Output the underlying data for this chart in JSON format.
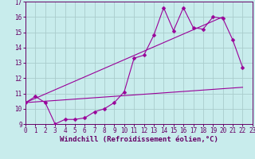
{
  "xlabel": "Windchill (Refroidissement éolien,°C)",
  "xlim": [
    0,
    23
  ],
  "ylim": [
    9,
    17
  ],
  "xticks": [
    0,
    1,
    2,
    3,
    4,
    5,
    6,
    7,
    8,
    9,
    10,
    11,
    12,
    13,
    14,
    15,
    16,
    17,
    18,
    19,
    20,
    21,
    22,
    23
  ],
  "yticks": [
    9,
    10,
    11,
    12,
    13,
    14,
    15,
    16,
    17
  ],
  "background_color": "#c8ecec",
  "line_color": "#990099",
  "grid_color": "#b8dede",
  "series_x": [
    0,
    1,
    2,
    3,
    4,
    5,
    6,
    7,
    8,
    9,
    10,
    11,
    12,
    13,
    14,
    15,
    16,
    17,
    18,
    19,
    20,
    21,
    22
  ],
  "series_y": [
    10.4,
    10.8,
    10.4,
    9.0,
    9.3,
    9.3,
    9.4,
    9.8,
    10.0,
    10.4,
    11.1,
    13.3,
    13.5,
    14.8,
    16.6,
    15.1,
    16.6,
    15.3,
    15.2,
    16.0,
    15.9,
    14.5,
    12.7
  ],
  "line1_x": [
    0,
    22
  ],
  "line1_y": [
    10.4,
    11.4
  ],
  "line2_x": [
    0,
    20
  ],
  "line2_y": [
    10.4,
    16.0
  ],
  "font_size": 6.5,
  "tick_font_size": 5.5,
  "label_color": "#660066",
  "spine_color": "#660066"
}
